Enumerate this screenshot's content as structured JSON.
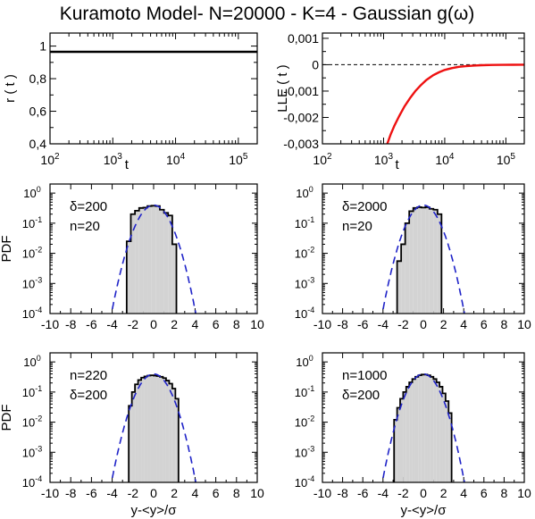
{
  "title": "Kuramoto Model- N=20000 - K=4 - Gaussian g(ω)",
  "colors": {
    "hist_fill": "#d3d3d3",
    "gauss": "#1f23c8",
    "lle": "#ee1111",
    "axis": "#000000"
  },
  "chart_data": [
    {
      "id": "r",
      "type": "line",
      "ylabel": "r ( t )",
      "xlabel": "t",
      "xscale": "log",
      "xlim": [
        100,
        200000
      ],
      "ylim": [
        0.4,
        1.08
      ],
      "xticks": [
        {
          "v": 100,
          "b": "10",
          "e": "2"
        },
        {
          "v": 1000,
          "b": "10",
          "e": "3"
        },
        {
          "v": 10000,
          "b": "10",
          "e": "4"
        },
        {
          "v": 100000,
          "b": "10",
          "e": "5"
        }
      ],
      "yticks": [
        {
          "v": 0.4,
          "l": "0,4"
        },
        {
          "v": 0.6,
          "l": "0,6"
        },
        {
          "v": 0.8,
          "l": "0,8"
        },
        {
          "v": 1.0,
          "l": "1"
        }
      ],
      "series": [
        {
          "color": "#000000",
          "x": [
            100,
            200000
          ],
          "y": [
            0.965,
            0.965
          ]
        }
      ]
    },
    {
      "id": "lle",
      "type": "line",
      "ylabel": "LLE ( t )",
      "xlabel": "t",
      "xscale": "log",
      "xlim": [
        100,
        200000
      ],
      "ylim": [
        -0.003,
        0.0012
      ],
      "zero_line": true,
      "xticks": [
        {
          "v": 100,
          "b": "10",
          "e": "2"
        },
        {
          "v": 1000,
          "b": "10",
          "e": "3"
        },
        {
          "v": 10000,
          "b": "10",
          "e": "4"
        },
        {
          "v": 100000,
          "b": "10",
          "e": "5"
        }
      ],
      "yticks": [
        {
          "v": -0.003,
          "l": "-0,003"
        },
        {
          "v": -0.002,
          "l": "-0,002"
        },
        {
          "v": -0.001,
          "l": "-0,001"
        },
        {
          "v": 0,
          "l": "0"
        },
        {
          "v": 0.001,
          "l": "0,001"
        }
      ],
      "series": [
        {
          "color": "#ee1111",
          "x": [
            1150,
            1300,
            1500,
            1800,
            2200,
            2700,
            3300,
            4000,
            5000,
            6500,
            8000,
            10000,
            13000,
            17000,
            22000,
            30000,
            40000,
            60000,
            90000,
            130000,
            200000
          ],
          "y": [
            -0.003,
            -0.00265,
            -0.00232,
            -0.00195,
            -0.00158,
            -0.00127,
            -0.001,
            -0.00079,
            -0.00058,
            -0.0004,
            -0.00029,
            -0.0002,
            -0.00013,
            -8e-05,
            -5.5e-05,
            -3.2e-05,
            -2e-05,
            -1e-05,
            -5e-06,
            -2e-06,
            0
          ]
        }
      ]
    },
    {
      "id": "pdf1",
      "type": "histogram",
      "ylabel": "PDF",
      "xlabel": "",
      "yscale": "log",
      "xlim": [
        -10,
        10
      ],
      "ylim": [
        0.0001,
        2
      ],
      "annotations": [
        "δ=200",
        "n=20"
      ],
      "edges": [
        -2.6,
        -2.2,
        -1.8,
        -1.4,
        -1.0,
        -0.6,
        -0.2,
        0.2,
        0.6,
        1.0,
        1.4,
        1.8,
        2.2
      ],
      "heights": [
        0.025,
        0.2,
        0.26,
        0.32,
        0.33,
        0.37,
        0.38,
        0.37,
        0.28,
        0.22,
        0.18,
        0.02
      ],
      "gauss": {
        "mu": 0,
        "sigma": 1
      },
      "xticks": [
        -10,
        -8,
        -6,
        -4,
        -2,
        0,
        2,
        4,
        6,
        8,
        10
      ],
      "yticks": [
        {
          "v": 0.0001,
          "e": "-4"
        },
        {
          "v": 0.001,
          "e": "-3"
        },
        {
          "v": 0.01,
          "e": "-2"
        },
        {
          "v": 0.1,
          "e": "-1"
        },
        {
          "v": 1,
          "e": "0"
        }
      ]
    },
    {
      "id": "pdf2",
      "type": "histogram",
      "ylabel": "",
      "xlabel": "",
      "yscale": "log",
      "xlim": [
        -10,
        10
      ],
      "ylim": [
        0.0001,
        2
      ],
      "annotations": [
        "δ=2000",
        "n=20"
      ],
      "edges": [
        -2.6,
        -2.2,
        -1.8,
        -1.4,
        -1.0,
        -0.6,
        -0.2,
        0.2,
        0.6,
        1.0,
        1.4,
        1.8
      ],
      "heights": [
        0.0055,
        0.02,
        0.1,
        0.25,
        0.32,
        0.34,
        0.33,
        0.34,
        0.3,
        0.28,
        0.2
      ],
      "gauss": {
        "mu": 0,
        "sigma": 1
      },
      "xticks": [
        -10,
        -8,
        -6,
        -4,
        -2,
        0,
        2,
        4,
        6,
        8,
        10
      ],
      "yticks": [
        {
          "v": 0.0001,
          "e": "-4"
        },
        {
          "v": 0.001,
          "e": "-3"
        },
        {
          "v": 0.01,
          "e": "-2"
        },
        {
          "v": 0.1,
          "e": "-1"
        },
        {
          "v": 1,
          "e": "0"
        }
      ]
    },
    {
      "id": "pdf3",
      "type": "histogram",
      "ylabel": "PDF",
      "xlabel": "y-<y>/σ",
      "yscale": "log",
      "xlim": [
        -10,
        10
      ],
      "ylim": [
        0.0001,
        2
      ],
      "annotations": [
        "n=220",
        "δ=200"
      ],
      "edges": [
        -2.4,
        -2.1,
        -1.8,
        -1.5,
        -1.2,
        -0.9,
        -0.6,
        -0.3,
        0,
        0.3,
        0.6,
        0.9,
        1.2,
        1.5,
        1.8,
        2.1,
        2.4
      ],
      "heights": [
        0.035,
        0.1,
        0.18,
        0.25,
        0.3,
        0.33,
        0.35,
        0.36,
        0.35,
        0.34,
        0.32,
        0.29,
        0.24,
        0.19,
        0.13,
        0.06
      ],
      "gauss": {
        "mu": 0,
        "sigma": 1
      },
      "xticks": [
        -10,
        -8,
        -6,
        -4,
        -2,
        0,
        2,
        4,
        6,
        8,
        10
      ],
      "yticks": [
        {
          "v": 0.0001,
          "e": "-4"
        },
        {
          "v": 0.001,
          "e": "-3"
        },
        {
          "v": 0.01,
          "e": "-2"
        },
        {
          "v": 0.1,
          "e": "-1"
        },
        {
          "v": 1,
          "e": "0"
        }
      ]
    },
    {
      "id": "pdf4",
      "type": "histogram",
      "ylabel": "",
      "xlabel": "y-<y>/σ",
      "yscale": "log",
      "xlim": [
        -10,
        10
      ],
      "ylim": [
        0.0001,
        2
      ],
      "annotations": [
        "n=1000",
        "δ=200"
      ],
      "edges": [
        -2.9,
        -2.6,
        -2.3,
        -2.0,
        -1.7,
        -1.4,
        -1.1,
        -0.8,
        -0.5,
        -0.2,
        0.1,
        0.4,
        0.7,
        1.0,
        1.3,
        1.6,
        1.9,
        2.2,
        2.5,
        2.8
      ],
      "heights": [
        0.012,
        0.03,
        0.06,
        0.1,
        0.15,
        0.21,
        0.27,
        0.32,
        0.36,
        0.38,
        0.38,
        0.36,
        0.32,
        0.27,
        0.21,
        0.15,
        0.09,
        0.05,
        0.02
      ],
      "gauss": {
        "mu": 0,
        "sigma": 1
      },
      "xticks": [
        -10,
        -8,
        -6,
        -4,
        -2,
        0,
        2,
        4,
        6,
        8,
        10
      ],
      "yticks": [
        {
          "v": 0.0001,
          "e": "-4"
        },
        {
          "v": 0.001,
          "e": "-3"
        },
        {
          "v": 0.01,
          "e": "-2"
        },
        {
          "v": 0.1,
          "e": "-1"
        },
        {
          "v": 1,
          "e": "0"
        }
      ]
    }
  ]
}
